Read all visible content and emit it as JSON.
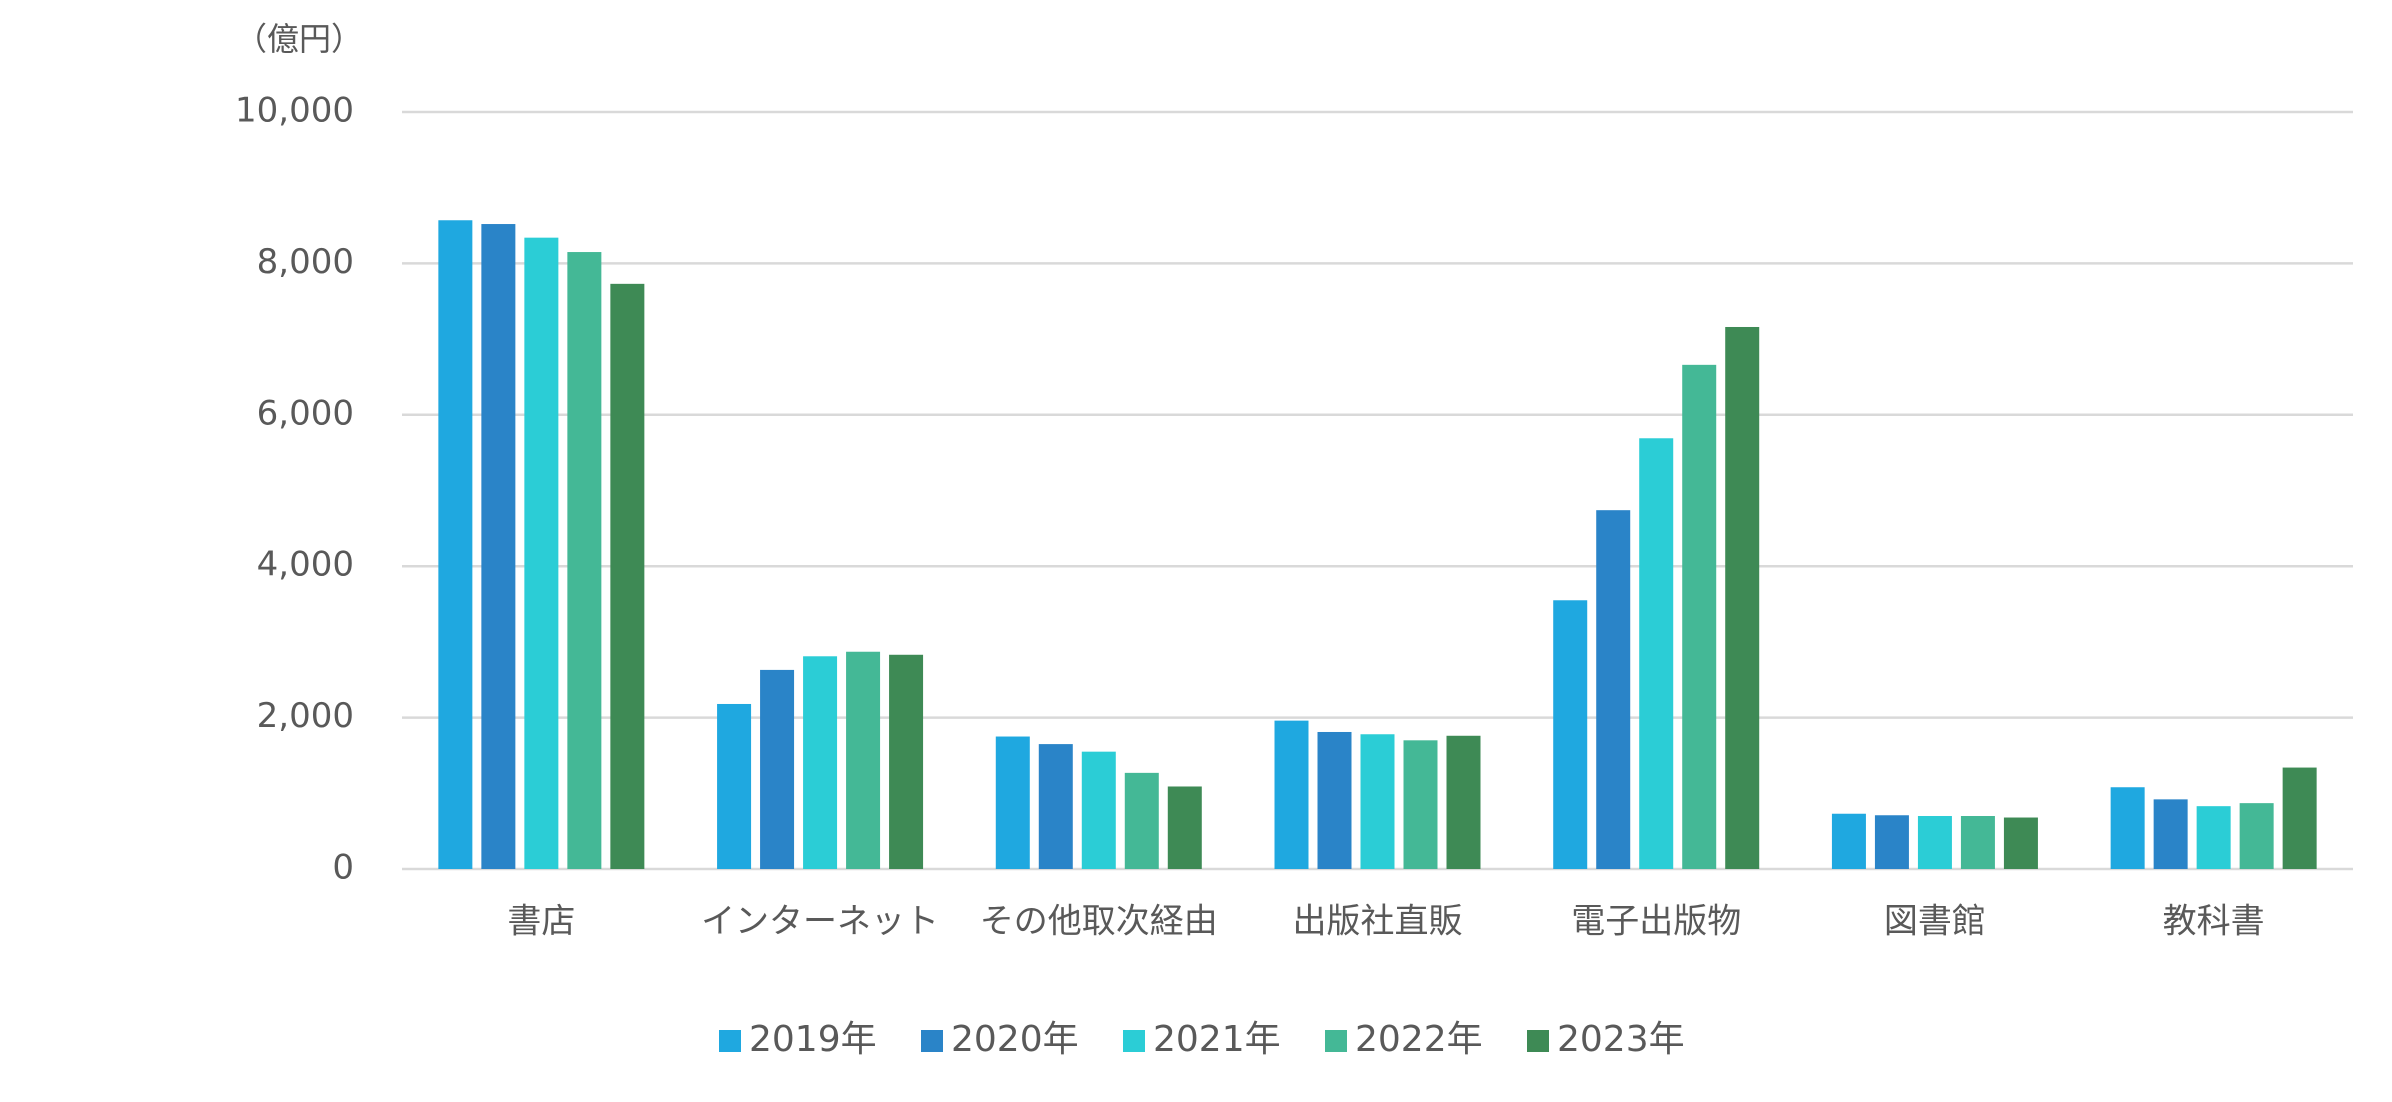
{
  "chart_data": {
    "type": "bar",
    "y_unit_label": "（億円）",
    "categories": [
      "書店",
      "インターネット",
      "その他取次経由",
      "出版社直販",
      "電子出版物",
      "図書館",
      "教科書"
    ],
    "series": [
      {
        "name": "2019年",
        "color": "#1fa8e0",
        "values": [
          8570,
          2180,
          1750,
          1960,
          3550,
          730,
          1080
        ]
      },
      {
        "name": "2020年",
        "color": "#2a84c8",
        "values": [
          8520,
          2630,
          1650,
          1810,
          4740,
          710,
          920
        ]
      },
      {
        "name": "2021年",
        "color": "#2bcdd6",
        "values": [
          8340,
          2810,
          1550,
          1780,
          5690,
          700,
          830
        ]
      },
      {
        "name": "2022年",
        "color": "#44b896",
        "values": [
          8150,
          2870,
          1270,
          1700,
          6660,
          700,
          870
        ]
      },
      {
        "name": "2023年",
        "color": "#3e8a55",
        "values": [
          7730,
          2830,
          1090,
          1760,
          7160,
          680,
          1340
        ]
      }
    ],
    "ylim": [
      0,
      10000
    ],
    "yticks": [
      0,
      {
        "value": 2000,
        "label": "2,000"
      },
      {
        "value": 4000,
        "label": "4,000"
      },
      {
        "value": 6000,
        "label": "6,000"
      },
      {
        "value": 8000,
        "label": "8,000"
      },
      {
        "value": 10000,
        "label": "10,000"
      }
    ],
    "grid": true,
    "legend": "bottom"
  }
}
